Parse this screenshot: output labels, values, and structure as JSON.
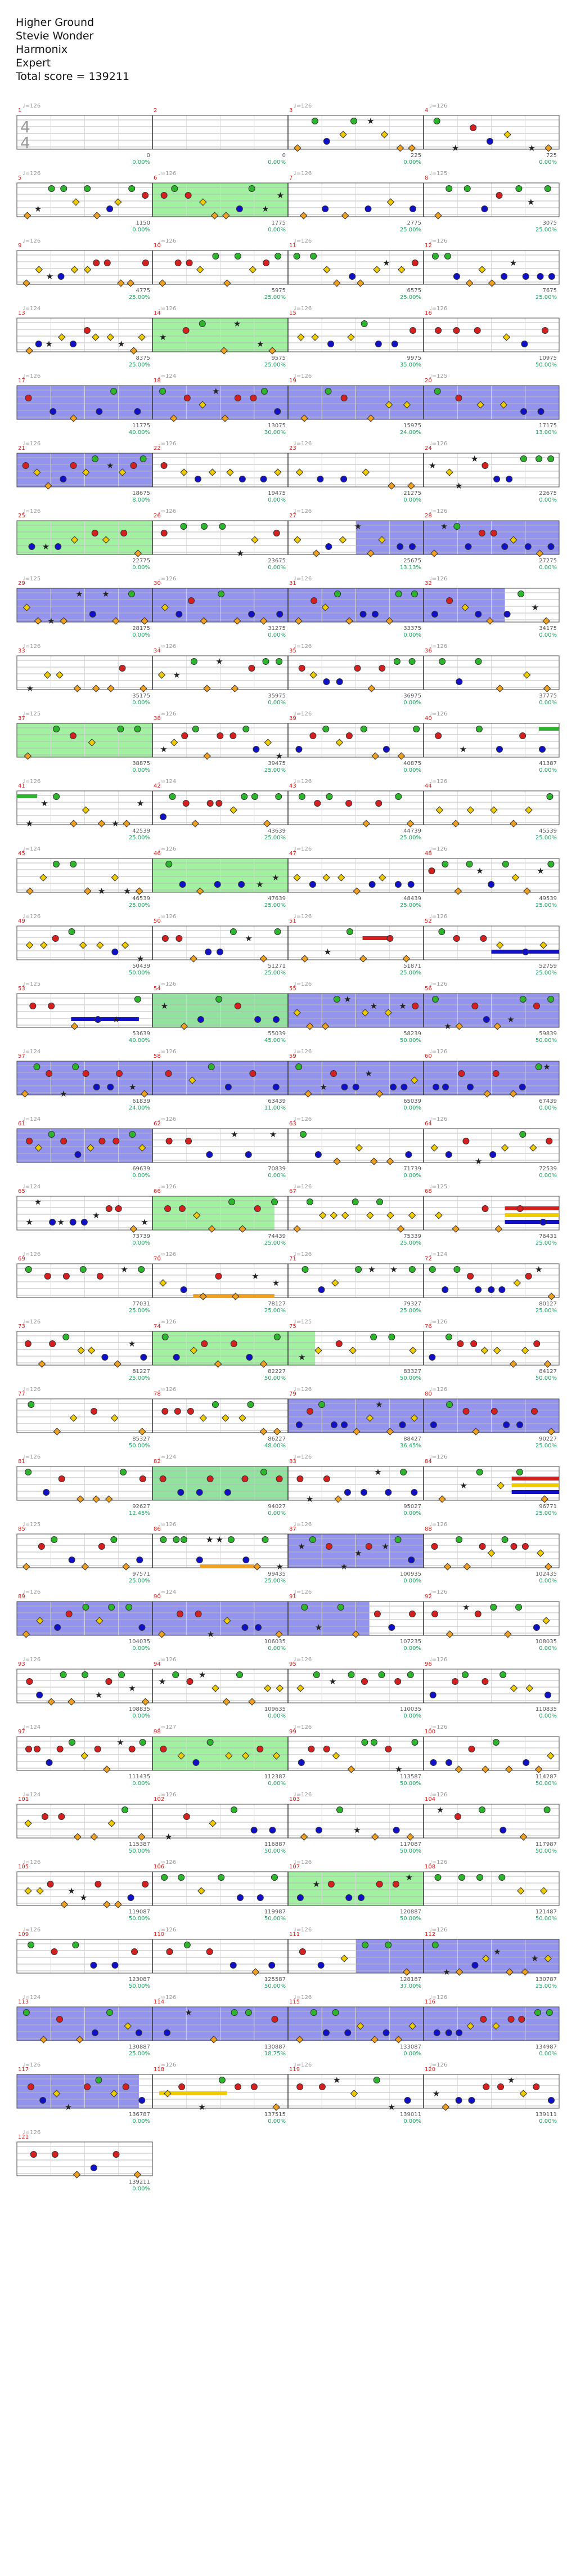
{
  "song": {
    "title": "Higher Ground",
    "artist": "Stevie Wonder",
    "charter": "Harmonix",
    "difficulty": "Expert",
    "total_score": "Total score = 139211"
  },
  "chart_data": {
    "type": "other",
    "time_signature": [
      "4",
      "4"
    ],
    "measures_per_row": 4,
    "colors": {
      "green": "#2db52d",
      "red": "#d62020",
      "yellow": "#eecc00",
      "blue": "#1010c8",
      "orange": "#f0a020",
      "starpower": "#90ee90",
      "solo": "#7070e8",
      "bpm": "#999999",
      "measure_number": "#cc2222",
      "score": "#555555",
      "percent": "#20a060"
    },
    "measures": [
      {
        "n": "1",
        "bpm": "♩=126",
        "score": "0",
        "pct": "0.00%"
      },
      {
        "n": "2",
        "bpm": "",
        "score": "0",
        "pct": "0.00%"
      },
      {
        "n": "3",
        "bpm": "♩=126",
        "score": "225",
        "pct": "0.00%"
      },
      {
        "n": "4",
        "bpm": "♩=126",
        "score": "725",
        "pct": "0.00%"
      },
      {
        "n": "5",
        "bpm": "♩=126",
        "score": "1150",
        "pct": "0.00%"
      },
      {
        "n": "6",
        "bpm": "♩=126",
        "score": "1775",
        "pct": "0.00%"
      },
      {
        "n": "7",
        "bpm": "♩=126",
        "score": "2775",
        "pct": "25.00%"
      },
      {
        "n": "8",
        "bpm": "♩=125",
        "score": "3075",
        "pct": "25.00%"
      },
      {
        "n": "9",
        "bpm": "♩=126",
        "score": "4775",
        "pct": "25.00%"
      },
      {
        "n": "10",
        "bpm": "♩=126",
        "score": "5975",
        "pct": "25.00%"
      },
      {
        "n": "11",
        "bpm": "♩=126",
        "score": "6575",
        "pct": "25.00%"
      },
      {
        "n": "12",
        "bpm": "♩=126",
        "score": "7675",
        "pct": "25.00%"
      },
      {
        "n": "13",
        "bpm": "♩=124",
        "score": "8375",
        "pct": "25.00%"
      },
      {
        "n": "14",
        "bpm": "♩=126",
        "score": "9575",
        "pct": "25.00%"
      },
      {
        "n": "15",
        "bpm": "♩=126",
        "score": "9975",
        "pct": "35.00%"
      },
      {
        "n": "16",
        "bpm": "♩=126",
        "score": "10975",
        "pct": "50.00%"
      },
      {
        "n": "17",
        "bpm": "♩=126",
        "score": "11775",
        "pct": "40.00%"
      },
      {
        "n": "18",
        "bpm": "♩=124",
        "score": "13075",
        "pct": "30.00%"
      },
      {
        "n": "19",
        "bpm": "♩=126",
        "score": "15975",
        "pct": "24.00%"
      },
      {
        "n": "20",
        "bpm": "♩=125",
        "score": "17175",
        "pct": "13.00%"
      },
      {
        "n": "21",
        "bpm": "♩=126",
        "score": "18675",
        "pct": "8.00%"
      },
      {
        "n": "22",
        "bpm": "♩=126",
        "score": "19475",
        "pct": "0.00%"
      },
      {
        "n": "23",
        "bpm": "♩=126",
        "score": "21275",
        "pct": "0.00%"
      },
      {
        "n": "24",
        "bpm": "♩=126",
        "score": "22675",
        "pct": "0.00%"
      },
      {
        "n": "25",
        "bpm": "♩=126",
        "score": "22775",
        "pct": "0.00%"
      },
      {
        "n": "26",
        "bpm": "♩=126",
        "score": "23675",
        "pct": "0.00%"
      },
      {
        "n": "27",
        "bpm": "♩=126",
        "score": "25675",
        "pct": "13.13%"
      },
      {
        "n": "28",
        "bpm": "♩=126",
        "score": "27275",
        "pct": "0.00%"
      },
      {
        "n": "29",
        "bpm": "♩=125",
        "score": "28175",
        "pct": "0.00%"
      },
      {
        "n": "30",
        "bpm": "♩=126",
        "score": "31275",
        "pct": "0.00%"
      },
      {
        "n": "31",
        "bpm": "♩=126",
        "score": "33375",
        "pct": "0.00%"
      },
      {
        "n": "32",
        "bpm": "♩=126",
        "score": "34175",
        "pct": "0.00%"
      },
      {
        "n": "33",
        "bpm": "♩=126",
        "score": "35175",
        "pct": "0.00%"
      },
      {
        "n": "34",
        "bpm": "♩=126",
        "score": "35975",
        "pct": "0.00%"
      },
      {
        "n": "35",
        "bpm": "♩=126",
        "score": "36975",
        "pct": "0.00%"
      },
      {
        "n": "36",
        "bpm": "♩=126",
        "score": "37775",
        "pct": "0.00%"
      },
      {
        "n": "37",
        "bpm": "♩=125",
        "score": "38875",
        "pct": "0.00%"
      },
      {
        "n": "38",
        "bpm": "♩=126",
        "score": "39475",
        "pct": "25.00%"
      },
      {
        "n": "39",
        "bpm": "♩=126",
        "score": "40875",
        "pct": "0.00%"
      },
      {
        "n": "40",
        "bpm": "♩=126",
        "score": "41387",
        "pct": "0.00%"
      },
      {
        "n": "41",
        "bpm": "♩=126",
        "score": "42539",
        "pct": "25.00%"
      },
      {
        "n": "42",
        "bpm": "♩=124",
        "score": "43639",
        "pct": "25.00%"
      },
      {
        "n": "43",
        "bpm": "♩=126",
        "score": "44739",
        "pct": "25.00%"
      },
      {
        "n": "44",
        "bpm": "♩=126",
        "score": "45539",
        "pct": "25.00%"
      },
      {
        "n": "45",
        "bpm": "♩=124",
        "score": "46539",
        "pct": "25.00%"
      },
      {
        "n": "46",
        "bpm": "♩=126",
        "score": "47639",
        "pct": "25.00%"
      },
      {
        "n": "47",
        "bpm": "♩=126",
        "score": "48439",
        "pct": "25.00%"
      },
      {
        "n": "48",
        "bpm": "♩=126",
        "score": "49539",
        "pct": "25.00%"
      },
      {
        "n": "49",
        "bpm": "♩=126",
        "score": "50439",
        "pct": "50.00%"
      },
      {
        "n": "50",
        "bpm": "♩=126",
        "score": "51271",
        "pct": "25.00%"
      },
      {
        "n": "51",
        "bpm": "♩=126",
        "score": "51871",
        "pct": "25.00%"
      },
      {
        "n": "52",
        "bpm": "♩=126",
        "score": "52759",
        "pct": "25.00%"
      },
      {
        "n": "53",
        "bpm": "♩=125",
        "score": "53639",
        "pct": "40.00%"
      },
      {
        "n": "54",
        "bpm": "♩=126",
        "score": "55039",
        "pct": "45.00%"
      },
      {
        "n": "55",
        "bpm": "♩=126",
        "score": "58239",
        "pct": "50.00%"
      },
      {
        "n": "56",
        "bpm": "♩=126",
        "score": "59839",
        "pct": "50.00%"
      },
      {
        "n": "57",
        "bpm": "♩=124",
        "score": "61839",
        "pct": "24.00%"
      },
      {
        "n": "58",
        "bpm": "♩=126",
        "score": "63439",
        "pct": "11.00%"
      },
      {
        "n": "59",
        "bpm": "♩=126",
        "score": "65039",
        "pct": "0.00%"
      },
      {
        "n": "60",
        "bpm": "♩=126",
        "score": "67439",
        "pct": "0.00%"
      },
      {
        "n": "61",
        "bpm": "♩=124",
        "score": "69639",
        "pct": "0.00%"
      },
      {
        "n": "62",
        "bpm": "♩=126",
        "score": "70839",
        "pct": "0.00%"
      },
      {
        "n": "63",
        "bpm": "♩=126",
        "score": "71739",
        "pct": "0.00%"
      },
      {
        "n": "64",
        "bpm": "♩=126",
        "score": "72539",
        "pct": "0.00%"
      },
      {
        "n": "65",
        "bpm": "♩=124",
        "score": "73739",
        "pct": "0.00%"
      },
      {
        "n": "66",
        "bpm": "♩=126",
        "score": "74439",
        "pct": "25.00%"
      },
      {
        "n": "67",
        "bpm": "♩=126",
        "score": "75339",
        "pct": "25.00%"
      },
      {
        "n": "68",
        "bpm": "♩=125",
        "score": "76431",
        "pct": "25.00%"
      },
      {
        "n": "69",
        "bpm": "♩=126",
        "score": "77031",
        "pct": "25.00%"
      },
      {
        "n": "70",
        "bpm": "♩=126",
        "score": "78127",
        "pct": "25.00%"
      },
      {
        "n": "71",
        "bpm": "♩=126",
        "score": "79327",
        "pct": "25.00%"
      },
      {
        "n": "72",
        "bpm": "♩=124",
        "score": "80127",
        "pct": "25.00%"
      },
      {
        "n": "73",
        "bpm": "♩=126",
        "score": "81227",
        "pct": "25.00%"
      },
      {
        "n": "74",
        "bpm": "♩=126",
        "score": "82227",
        "pct": "50.00%"
      },
      {
        "n": "75",
        "bpm": "♩=125",
        "score": "83327",
        "pct": "50.00%"
      },
      {
        "n": "76",
        "bpm": "♩=126",
        "score": "84127",
        "pct": "50.00%"
      },
      {
        "n": "77",
        "bpm": "♩=126",
        "score": "85327",
        "pct": "50.00%"
      },
      {
        "n": "78",
        "bpm": "♩=126",
        "score": "86227",
        "pct": "48.00%"
      },
      {
        "n": "79",
        "bpm": "♩=126",
        "score": "88427",
        "pct": "36.45%"
      },
      {
        "n": "80",
        "bpm": "♩=126",
        "score": "90227",
        "pct": "25.00%"
      },
      {
        "n": "81",
        "bpm": "♩=126",
        "score": "92627",
        "pct": "12.45%"
      },
      {
        "n": "82",
        "bpm": "♩=124",
        "score": "94027",
        "pct": "0.00%"
      },
      {
        "n": "83",
        "bpm": "♩=126",
        "score": "95027",
        "pct": "0.00%"
      },
      {
        "n": "84",
        "bpm": "♩=126",
        "score": "96771",
        "pct": "25.00%"
      },
      {
        "n": "85",
        "bpm": "♩=125",
        "score": "97571",
        "pct": "25.00%"
      },
      {
        "n": "86",
        "bpm": "♩=126",
        "score": "99435",
        "pct": "25.00%"
      },
      {
        "n": "87",
        "bpm": "♩=126",
        "score": "100935",
        "pct": "0.00%"
      },
      {
        "n": "88",
        "bpm": "♩=126",
        "score": "102435",
        "pct": "0.00%"
      },
      {
        "n": "89",
        "bpm": "♩=126",
        "score": "104035",
        "pct": "0.00%"
      },
      {
        "n": "90",
        "bpm": "♩=124",
        "score": "106035",
        "pct": "0.00%"
      },
      {
        "n": "91",
        "bpm": "♩=126",
        "score": "107235",
        "pct": "0.00%"
      },
      {
        "n": "92",
        "bpm": "♩=126",
        "score": "108035",
        "pct": "0.00%"
      },
      {
        "n": "93",
        "bpm": "♩=126",
        "score": "108835",
        "pct": "0.00%"
      },
      {
        "n": "94",
        "bpm": "♩=126",
        "score": "109635",
        "pct": "0.00%"
      },
      {
        "n": "95",
        "bpm": "♩=126",
        "score": "110035",
        "pct": "0.00%"
      },
      {
        "n": "96",
        "bpm": "♩=126",
        "score": "110835",
        "pct": "0.00%"
      },
      {
        "n": "97",
        "bpm": "♩=124",
        "score": "111435",
        "pct": "0.00%"
      },
      {
        "n": "98",
        "bpm": "♩=127",
        "score": "112387",
        "pct": "0.00%"
      },
      {
        "n": "99",
        "bpm": "♩=126",
        "score": "113587",
        "pct": "50.00%"
      },
      {
        "n": "100",
        "bpm": "♩=126",
        "score": "114287",
        "pct": "50.00%"
      },
      {
        "n": "101",
        "bpm": "♩=124",
        "score": "115387",
        "pct": "50.00%"
      },
      {
        "n": "102",
        "bpm": "♩=126",
        "score": "116887",
        "pct": "50.00%"
      },
      {
        "n": "103",
        "bpm": "♩=126",
        "score": "117087",
        "pct": "50.00%"
      },
      {
        "n": "104",
        "bpm": "♩=126",
        "score": "117987",
        "pct": "50.00%"
      },
      {
        "n": "105",
        "bpm": "♩=126",
        "score": "119087",
        "pct": "50.00%"
      },
      {
        "n": "106",
        "bpm": "♩=126",
        "score": "119987",
        "pct": "50.00%"
      },
      {
        "n": "107",
        "bpm": "♩=126",
        "score": "120887",
        "pct": "50.00%"
      },
      {
        "n": "108",
        "bpm": "♩=126",
        "score": "121487",
        "pct": "50.00%"
      },
      {
        "n": "109",
        "bpm": "♩=126",
        "score": "123087",
        "pct": "50.00%"
      },
      {
        "n": "110",
        "bpm": "♩=126",
        "score": "125587",
        "pct": "50.00%"
      },
      {
        "n": "111",
        "bpm": "♩=126",
        "score": "128187",
        "pct": "37.00%"
      },
      {
        "n": "112",
        "bpm": "♩=126",
        "score": "130787",
        "pct": "25.00%"
      },
      {
        "n": "113",
        "bpm": "♩=124",
        "score": "130887",
        "pct": "25.00%"
      },
      {
        "n": "114",
        "bpm": "♩=126",
        "score": "130887",
        "pct": "18.75%"
      },
      {
        "n": "115",
        "bpm": "♩=126",
        "score": "133087",
        "pct": "0.00%"
      },
      {
        "n": "116",
        "bpm": "♩=126",
        "score": "134987",
        "pct": "0.00%"
      },
      {
        "n": "117",
        "bpm": "♩=126",
        "score": "136787",
        "pct": "0.00%"
      },
      {
        "n": "118",
        "bpm": "♩=126",
        "score": "137515",
        "pct": "0.00%"
      },
      {
        "n": "119",
        "bpm": "♩=126",
        "score": "139011",
        "pct": "0.00%"
      },
      {
        "n": "120",
        "bpm": "♩=126",
        "score": "139111",
        "pct": "0.00%"
      },
      {
        "n": "121",
        "bpm": "♩=126",
        "score": "139211",
        "pct": "0.00%"
      }
    ],
    "overdrive_phrases": [
      {
        "from": 6.0,
        "to": 7.0
      },
      {
        "from": 14.0,
        "to": 15.0
      },
      {
        "from": 25.0,
        "to": 26.0
      },
      {
        "from": 37.0,
        "to": 38.0
      },
      {
        "from": 46.0,
        "to": 47.0
      },
      {
        "from": 54.0,
        "to": 55.0
      },
      {
        "from": 66.0,
        "to": 66.9
      },
      {
        "from": 74.0,
        "to": 75.2
      },
      {
        "from": 82.0,
        "to": 83.0
      },
      {
        "from": 98.0,
        "to": 99.0
      },
      {
        "from": 107.0,
        "to": 108.0
      }
    ],
    "solo_sections": [
      {
        "from": 17.0,
        "to": 21.0
      },
      {
        "from": 21.0,
        "to": 22.0
      },
      {
        "from": 27.5,
        "to": 29.0
      },
      {
        "from": 29.0,
        "to": 32.6
      },
      {
        "from": 54.0,
        "to": 61.0
      },
      {
        "from": 61.0,
        "to": 62.0
      },
      {
        "from": 79.0,
        "to": 81.0
      },
      {
        "from": 82.0,
        "to": 83.0
      },
      {
        "from": 87.0,
        "to": 88.0
      },
      {
        "from": 89.0,
        "to": 91.6
      },
      {
        "from": 111.5,
        "to": 117.0
      },
      {
        "from": 117.0,
        "to": 117.9
      }
    ],
    "sustains": [
      {
        "lane": "red",
        "from": 51.55,
        "to": 51.75
      },
      {
        "lane": "blue",
        "from": 52.5,
        "to": 53.0
      },
      {
        "lane": "blue",
        "from": 53.4,
        "to": 53.9
      },
      {
        "lane": "red",
        "from": 68.6,
        "to": 69.0
      },
      {
        "lane": "yellow",
        "from": 68.6,
        "to": 69.0
      },
      {
        "lane": "blue",
        "from": 68.6,
        "to": 69.0
      },
      {
        "lane": "orange",
        "from": 70.3,
        "to": 70.9
      },
      {
        "lane": "red",
        "from": 84.65,
        "to": 85.0
      },
      {
        "lane": "yellow",
        "from": 84.65,
        "to": 85.0
      },
      {
        "lane": "blue",
        "from": 84.65,
        "to": 85.0
      },
      {
        "lane": "orange",
        "from": 86.35,
        "to": 86.75
      },
      {
        "lane": "yellow",
        "from": 118.05,
        "to": 118.55
      },
      {
        "lane": "green",
        "from": 40.85,
        "to": 41.0
      },
      {
        "lane": "green",
        "from": 41.0,
        "to": 41.15
      }
    ],
    "note_seed": 139211
  }
}
